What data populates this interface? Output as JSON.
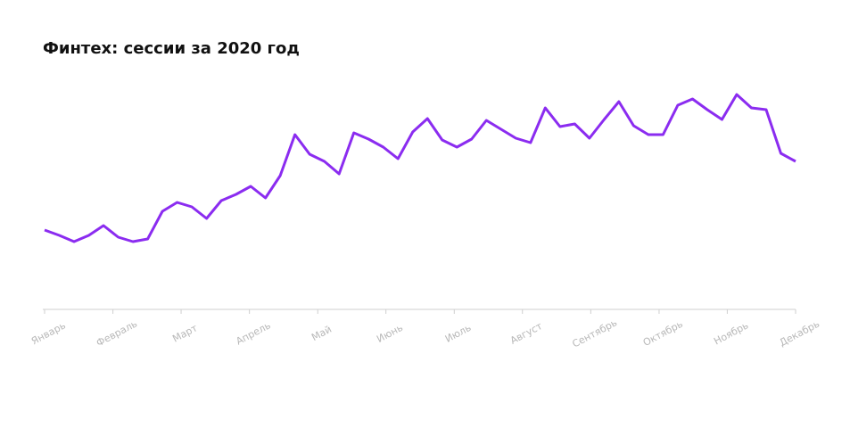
{
  "chart_data": {
    "type": "line",
    "title": "Финтех: сессии за 2020 год",
    "x": [
      0,
      1,
      2,
      3,
      4,
      5,
      6,
      7,
      8,
      9,
      10,
      11,
      12,
      13,
      14,
      15,
      16,
      17,
      18,
      19,
      20,
      21,
      22,
      23,
      24,
      25,
      26,
      27,
      28,
      29,
      30,
      31,
      32,
      33,
      34,
      35,
      36,
      37,
      38,
      39,
      40,
      41,
      42,
      43,
      44,
      45,
      46,
      47,
      48,
      49,
      50,
      51
    ],
    "series": [
      {
        "color": "#8b2cf0",
        "values": [
          89,
          83,
          76,
          83,
          94,
          81,
          76,
          79,
          110,
          120,
          115,
          102,
          122,
          129,
          138,
          125,
          150,
          196,
          174,
          166,
          152,
          198,
          191,
          182,
          169,
          199,
          214,
          190,
          182,
          191,
          212,
          202,
          192,
          187,
          226,
          205,
          208,
          192,
          213,
          233,
          206,
          196,
          196,
          229,
          236,
          224,
          213,
          241,
          226,
          224,
          175,
          166
        ]
      }
    ],
    "xlim": [
      0,
      51
    ],
    "xticks": [
      {
        "value": 0,
        "label": "Январь"
      },
      {
        "value": 4.64,
        "label": "Февраль"
      },
      {
        "value": 9.27,
        "label": "Март"
      },
      {
        "value": 13.91,
        "label": "Апрель"
      },
      {
        "value": 18.55,
        "label": "Май"
      },
      {
        "value": 23.18,
        "label": "Июнь"
      },
      {
        "value": 27.82,
        "label": "Июль"
      },
      {
        "value": 32.45,
        "label": "Август"
      },
      {
        "value": 37.09,
        "label": "Сентябрь"
      },
      {
        "value": 41.73,
        "label": "Октябрь"
      },
      {
        "value": 46.36,
        "label": "Ноябрь"
      },
      {
        "value": 51,
        "label": "Декабрь"
      }
    ],
    "ylim": [
      0,
      260
    ]
  }
}
